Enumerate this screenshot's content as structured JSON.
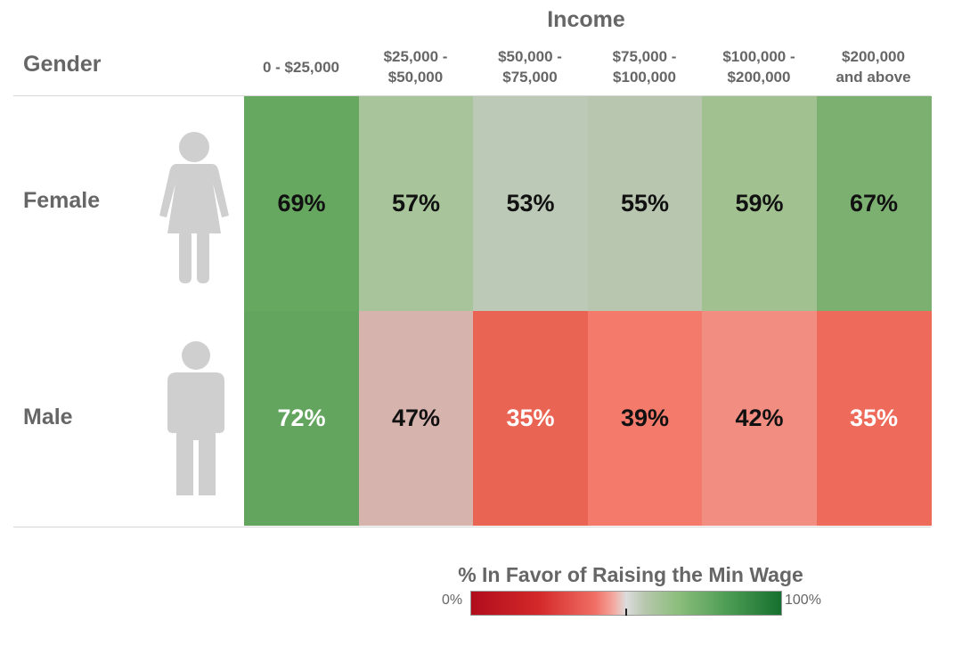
{
  "chart_data": {
    "type": "heatmap",
    "column_dimension": "Income",
    "row_dimension": "Gender",
    "columns": [
      "0 - $25,000",
      "$25,000 -\n$50,000",
      "$50,000 -\n$75,000",
      "$75,000 -\n$100,000",
      "$100,000 -\n$200,000",
      "$200,000\nand above"
    ],
    "rows": [
      {
        "label": "Female",
        "icon": "female-person-icon",
        "values": [
          69,
          57,
          53,
          55,
          59,
          67
        ],
        "value_labels": [
          "69%",
          "57%",
          "53%",
          "55%",
          "59%",
          "67%"
        ]
      },
      {
        "label": "Male",
        "icon": "male-person-icon",
        "values": [
          72,
          47,
          35,
          39,
          42,
          35
        ],
        "value_labels": [
          "72%",
          "47%",
          "35%",
          "39%",
          "42%",
          "35%"
        ]
      }
    ],
    "color_scale": {
      "title": "% In Favor of Raising the Min Wage",
      "min_label": "0%",
      "max_label": "100%",
      "min": 0,
      "max": 100,
      "low_color": "#b00d1c",
      "mid_color": "#dcdcdc",
      "high_color": "#16702f"
    },
    "cell_colors": [
      [
        "#67a861",
        "#a7c49a",
        "#bdc9b7",
        "#b8c6b0",
        "#a1c191",
        "#7cb071"
      ],
      [
        "#63a55e",
        "#d7b3ae",
        "#ea6453",
        "#f47a6b",
        "#f28d82",
        "#ee6a5a"
      ]
    ],
    "text_colors": [
      [
        "#111111",
        "#111111",
        "#111111",
        "#111111",
        "#111111",
        "#111111"
      ],
      [
        "#ffffff",
        "#111111",
        "#ffffff",
        "#111111",
        "#111111",
        "#ffffff"
      ]
    ]
  }
}
